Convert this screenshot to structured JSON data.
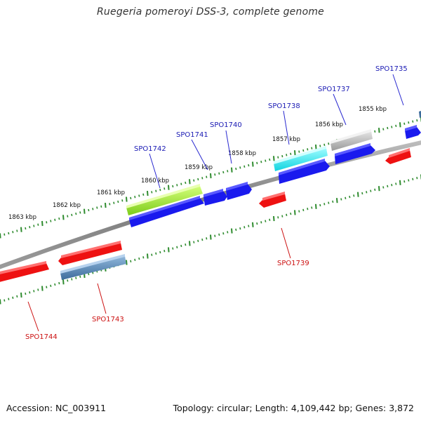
{
  "title": "Ruegeria pomeroyi DSS-3, complete genome",
  "footer": {
    "accession": "Accession: NC_003911",
    "info": "Topology: circular; Length: 4,109,442 bp; Genes: 3,872"
  },
  "colors": {
    "backbone": "#8a8a8a",
    "tick": "#2e8b2e",
    "forward_gene": "#1a1aee",
    "reverse_gene": "#ee1111",
    "label_forward": "#1a1ab4",
    "label_reverse": "#cc1111",
    "leader_forward": "#2a2ad0",
    "leader_reverse": "#cc1111"
  },
  "kbp_labels": [
    "1855 kbp",
    "1856 kbp",
    "1857 kbp",
    "1858 kbp",
    "1859 kbp",
    "1860 kbp",
    "1861 kbp",
    "1862 kbp",
    "1863 kbp"
  ],
  "gene_labels_top": [
    "SPO1735",
    "SPO1737",
    "SPO1738",
    "SPO1740",
    "SPO1741",
    "SPO1742"
  ],
  "gene_labels_bottom": [
    "SPO1739",
    "SPO1743",
    "SPO1744"
  ]
}
